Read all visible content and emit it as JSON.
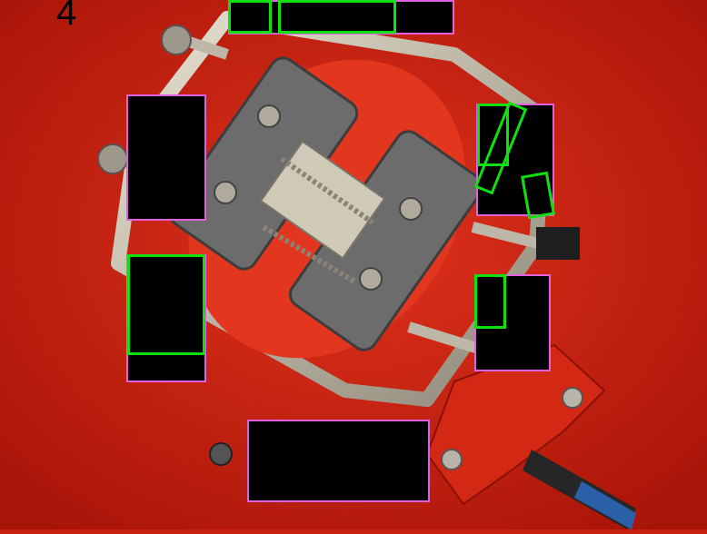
{
  "frame": {
    "label": "4"
  },
  "colors": {
    "background": "#c8200f",
    "mask_fill": "#000000",
    "mask_outline": "#e060e0",
    "detection_outline": "#10e010",
    "metal": "#b8b2a4",
    "rubber": "#6c6c6c"
  },
  "objects": {
    "mechanism": "metal-bracket-with-springs",
    "sensor": "proximity-sensor",
    "mount": "red-printed-mount"
  }
}
